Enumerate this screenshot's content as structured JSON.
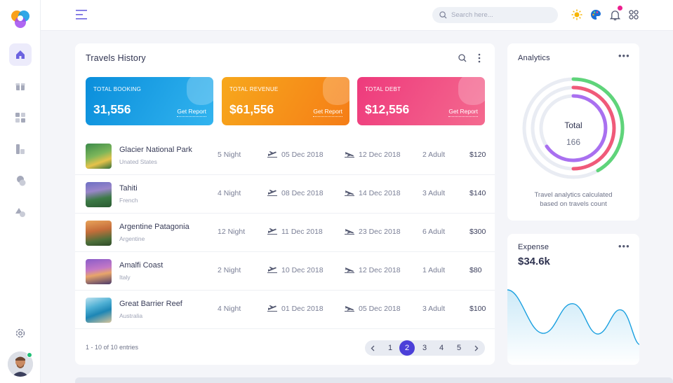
{
  "sidebar": {
    "items": [
      {
        "name": "home",
        "active": true
      },
      {
        "name": "gift"
      },
      {
        "name": "grid"
      },
      {
        "name": "docs"
      },
      {
        "name": "circles"
      },
      {
        "name": "shapes"
      }
    ]
  },
  "header": {
    "search_placeholder": "Search here..."
  },
  "travels": {
    "title": "Travels History",
    "stats": [
      {
        "label": "TOTAL BOOKING",
        "value": "31,556",
        "link": "Get Report",
        "color": "#1b9de6"
      },
      {
        "label": "TOTAL REVENUE",
        "value": "$61,556",
        "link": "Get Report",
        "color": "#f9a11b"
      },
      {
        "label": "TOTAL DEBT",
        "value": "$12,556",
        "link": "Get Report",
        "color": "#f0437e"
      }
    ],
    "rows": [
      {
        "name": "Glacier National Park",
        "location": "Unated States",
        "nights": "5 Night",
        "depart": "05 Dec 2018",
        "arrive": "12 Dec 2018",
        "adults": "2 Adult",
        "price": "$120"
      },
      {
        "name": "Tahiti",
        "location": "French",
        "nights": "4 Night",
        "depart": "08 Dec 2018",
        "arrive": "14 Dec 2018",
        "adults": "3 Adult",
        "price": "$140"
      },
      {
        "name": "Argentine Patagonia",
        "location": "Argentine",
        "nights": "12 Night",
        "depart": "11 Dec 2018",
        "arrive": "23 Dec 2018",
        "adults": "6 Adult",
        "price": "$300"
      },
      {
        "name": "Amalfi Coast",
        "location": "Italy",
        "nights": "2 Night",
        "depart": "10 Dec 2018",
        "arrive": "12 Dec 2018",
        "adults": "1 Adult",
        "price": "$80"
      },
      {
        "name": "Great Barrier Reef",
        "location": "Australia",
        "nights": "4 Night",
        "depart": "01 Dec 2018",
        "arrive": "05 Dec 2018",
        "adults": "3 Adult",
        "price": "$100"
      }
    ],
    "entries": "1 - 10 of 10 entries",
    "pages": [
      "1",
      "2",
      "3",
      "4",
      "5"
    ],
    "current_page": "2"
  },
  "analytics": {
    "title": "Analytics",
    "center_label": "Total",
    "center_value": "166",
    "description_line1": "Travel analytics calculated",
    "description_line2": "based on travels count",
    "ring_colors": [
      "#5fd47a",
      "#f05a79",
      "#a970f0"
    ]
  },
  "expense": {
    "title": "Expense",
    "value": "$34.6k",
    "line_color": "#1aa0e0"
  }
}
